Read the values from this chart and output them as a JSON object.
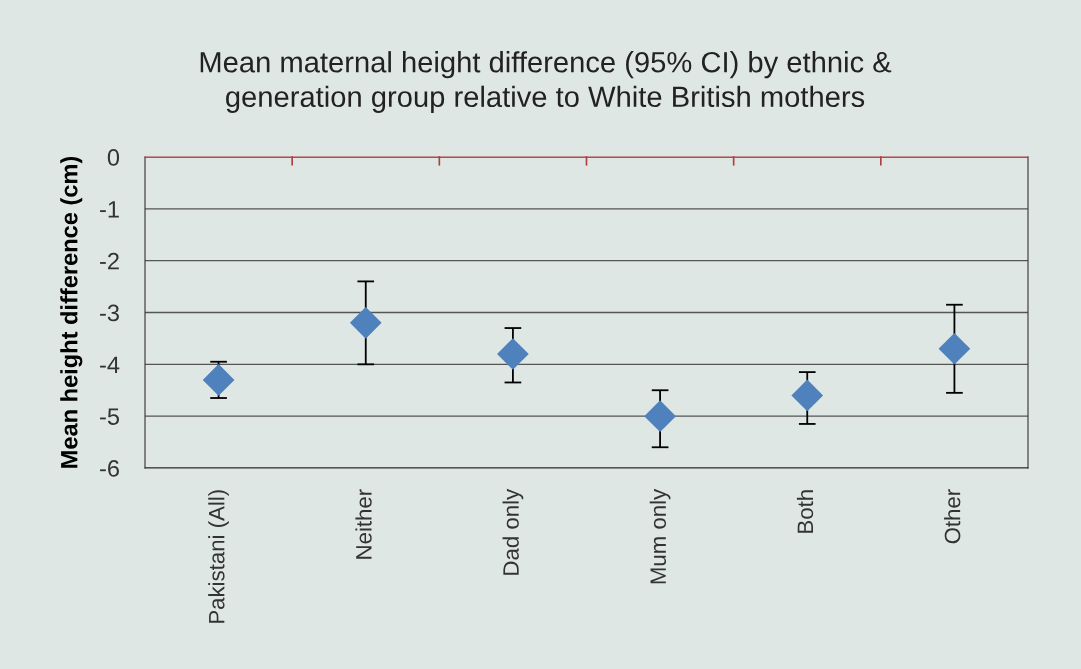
{
  "chart_data": {
    "type": "scatter",
    "title": "Mean maternal height difference (95% CI) by ethnic &\ngeneration group relative to White British mothers",
    "ylabel": "Mean height difference (cm)",
    "categories": [
      "Pakistani (All)",
      "Neither",
      "Dad only",
      "Mum only",
      "Both",
      "Other"
    ],
    "values": [
      -4.3,
      -3.2,
      -3.8,
      -5.0,
      -4.6,
      -3.7
    ],
    "errors": [
      [
        -4.65,
        -3.95
      ],
      [
        -4.0,
        -2.4
      ],
      [
        -4.35,
        -3.3
      ],
      [
        -5.6,
        -4.5
      ],
      [
        -5.15,
        -4.15
      ],
      [
        -4.55,
        -2.85
      ]
    ],
    "color": "#4f81bd",
    "marker": "diamond",
    "ylim": [
      -6,
      0
    ],
    "yticks": [
      -6,
      -5,
      -4,
      -3,
      -2,
      -1,
      0
    ],
    "grid": "y",
    "legend": false
  }
}
